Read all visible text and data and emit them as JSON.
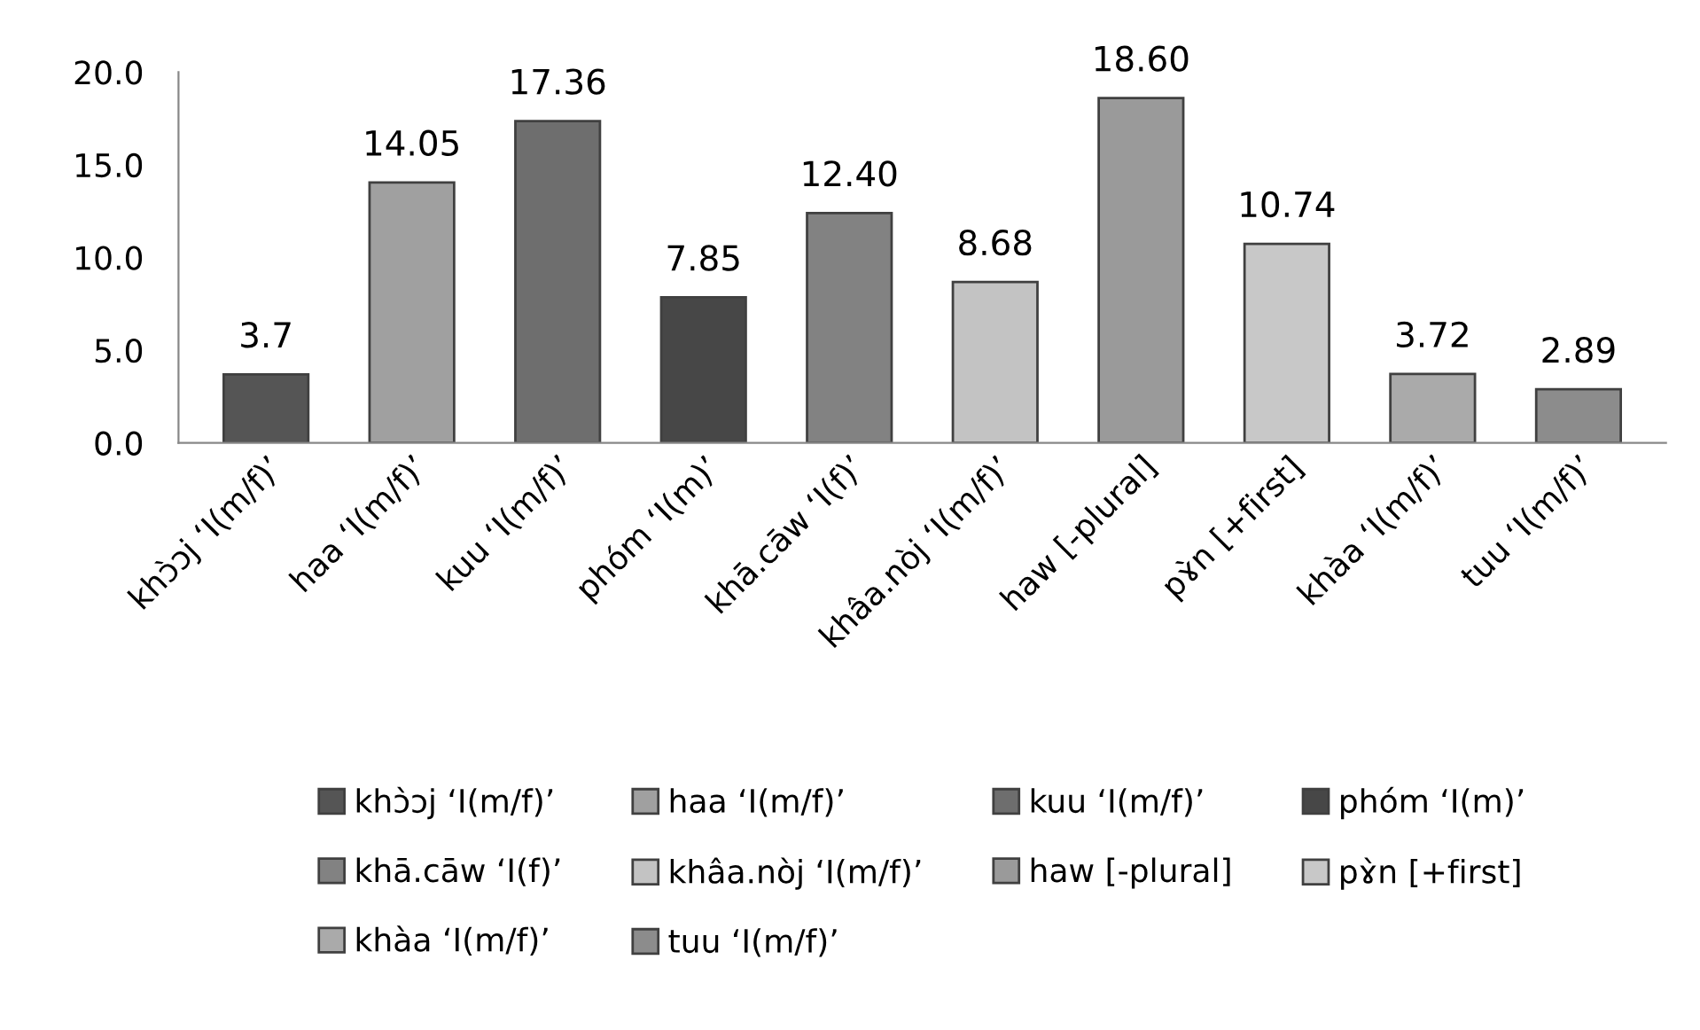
{
  "chart_data": {
    "type": "bar",
    "categories": [
      "khɔ̀ɔj ‘I(m/f)’",
      "haa ‘I(m/f)’",
      "kuu ‘I(m/f)’",
      "phóm ‘I(m)’",
      "khā.cāw ‘I(f)’",
      "khâa.nòj ‘I(m/f)’",
      "haw [-plural]",
      "pɤ̀n [+first]",
      "khàa ‘I(m/f)’",
      "tuu ‘I(m/f)’"
    ],
    "series": [
      {
        "name": "khɔ̀ɔj ‘I(m/f)’",
        "color": "#555555",
        "values": [
          3.7,
          null,
          null,
          null,
          null,
          null,
          null,
          null,
          null,
          null
        ],
        "value_labels": [
          "3.7",
          null,
          null,
          null,
          null,
          null,
          null,
          null,
          null,
          null
        ]
      },
      {
        "name": "haa ‘I(m/f)’",
        "color": "#a0a0a0",
        "values": [
          null,
          14.05,
          null,
          null,
          null,
          null,
          null,
          null,
          null,
          null
        ],
        "value_labels": [
          null,
          "14.05",
          null,
          null,
          null,
          null,
          null,
          null,
          null,
          null
        ]
      },
      {
        "name": "kuu ‘I(m/f)’",
        "color": "#6e6e6e",
        "values": [
          null,
          null,
          17.36,
          null,
          null,
          null,
          null,
          null,
          null,
          null
        ],
        "value_labels": [
          null,
          null,
          "17.36",
          null,
          null,
          null,
          null,
          null,
          null,
          null
        ]
      },
      {
        "name": "phóm ‘I(m)’",
        "color": "#474747",
        "values": [
          null,
          null,
          null,
          7.85,
          null,
          null,
          null,
          null,
          null,
          null
        ],
        "value_labels": [
          null,
          null,
          null,
          "7.85",
          null,
          null,
          null,
          null,
          null,
          null
        ]
      },
      {
        "name": "khā.cāw ‘I(f)’",
        "color": "#828282",
        "values": [
          null,
          null,
          null,
          null,
          12.4,
          null,
          null,
          null,
          null,
          null
        ],
        "value_labels": [
          null,
          null,
          null,
          null,
          "12.40",
          null,
          null,
          null,
          null,
          null
        ]
      },
      {
        "name": "khâa.nòj ‘I(m/f)’",
        "color": "#c3c3c3",
        "values": [
          null,
          null,
          null,
          null,
          null,
          8.68,
          null,
          null,
          null,
          null
        ],
        "value_labels": [
          null,
          null,
          null,
          null,
          null,
          "8.68",
          null,
          null,
          null,
          null
        ]
      },
      {
        "name": "haw [-plural]",
        "color": "#9a9a9a",
        "values": [
          null,
          null,
          null,
          null,
          null,
          null,
          18.6,
          null,
          null,
          null
        ],
        "value_labels": [
          null,
          null,
          null,
          null,
          null,
          null,
          "18.60",
          null,
          null,
          null
        ]
      },
      {
        "name": "pɤ̀n [+first]",
        "color": "#c8c8c8",
        "values": [
          null,
          null,
          null,
          null,
          null,
          null,
          null,
          10.74,
          null,
          null
        ],
        "value_labels": [
          null,
          null,
          null,
          null,
          null,
          null,
          null,
          "10.74",
          null,
          null
        ]
      },
      {
        "name": "khàa ‘I(m/f)’",
        "color": "#aaaaaa",
        "values": [
          null,
          null,
          null,
          null,
          null,
          null,
          null,
          null,
          3.72,
          null
        ],
        "value_labels": [
          null,
          null,
          null,
          null,
          null,
          null,
          null,
          null,
          "3.72",
          null
        ]
      },
      {
        "name": "tuu ‘I(m/f)’",
        "color": "#8c8c8c",
        "values": [
          null,
          null,
          null,
          null,
          null,
          null,
          null,
          null,
          null,
          2.89
        ],
        "value_labels": [
          null,
          null,
          null,
          null,
          null,
          null,
          null,
          null,
          null,
          "2.89"
        ]
      }
    ],
    "ylim": [
      0,
      20
    ],
    "yticks": [
      {
        "value": 0,
        "label": "0.0"
      },
      {
        "value": 5,
        "label": "5.0"
      },
      {
        "value": 10,
        "label": "10.0"
      },
      {
        "value": 15,
        "label": "15.0"
      },
      {
        "value": 20,
        "label": "20.0"
      }
    ],
    "grid": false,
    "legend": "bottom"
  }
}
